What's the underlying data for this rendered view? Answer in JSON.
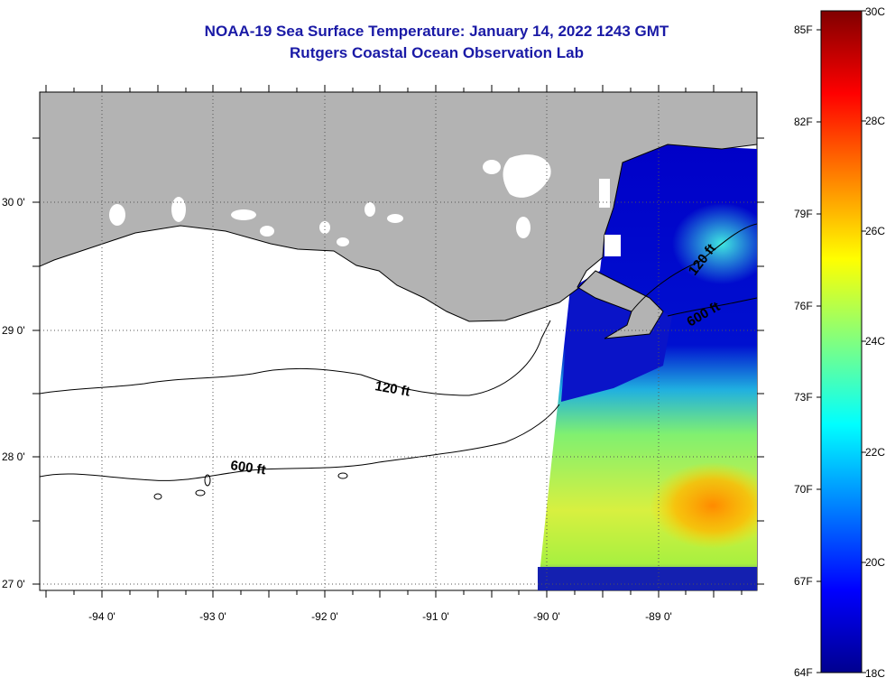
{
  "title": {
    "line1": "NOAA-19 Sea Surface Temperature:  January 14, 2022 1243 GMT",
    "line2": "Rutgers Coastal Ocean Observation Lab"
  },
  "map": {
    "lon_labels": [
      "-94 0'",
      "-93 0'",
      "-92 0'",
      "-91 0'",
      "-90 0'",
      "-89 0'"
    ],
    "lat_labels": [
      "30 0'",
      "29 0'",
      "28 0'",
      "27 0'"
    ],
    "contour_labels": [
      "120 ft",
      "600 ft",
      "120 ft",
      "600 ft"
    ]
  },
  "colorbar": {
    "fahrenheit_labels": [
      "85F",
      "82F",
      "79F",
      "76F",
      "73F",
      "70F",
      "67F",
      "64F"
    ],
    "celsius_labels": [
      "30C",
      "28C",
      "26C",
      "24C",
      "22C",
      "20C",
      "18C"
    ],
    "range_c": [
      18,
      30
    ],
    "colors": [
      "#00008f",
      "#0000ff",
      "#0080ff",
      "#00ffff",
      "#80ff80",
      "#ffff00",
      "#ff8000",
      "#ff0000",
      "#800000"
    ]
  },
  "colors": {
    "title": "#1a1aa6",
    "land": "#b3b3b3",
    "water_nodata": "#ffffff"
  }
}
